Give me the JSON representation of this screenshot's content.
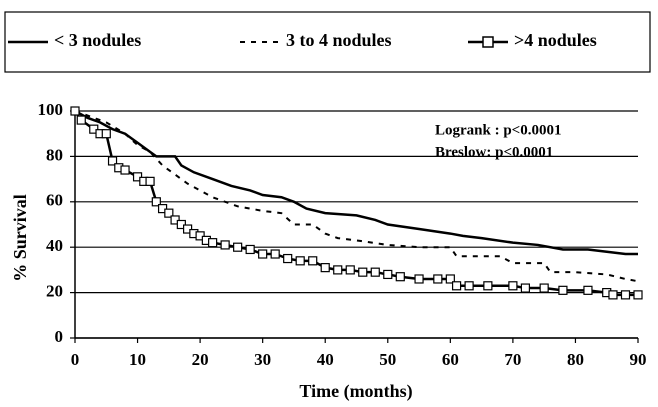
{
  "chart_data": {
    "type": "line",
    "x_label": "Time (months)",
    "y_label": "% Survival",
    "annotations": [
      "Logrank : p<0.0001",
      "Breslow: p<0.0001"
    ],
    "xlim": [
      0,
      90
    ],
    "xticks": [
      0,
      10,
      20,
      30,
      40,
      50,
      60,
      70,
      80,
      90
    ],
    "ylim": [
      0,
      100
    ],
    "yticks": [
      0,
      20,
      40,
      60,
      80,
      100
    ],
    "grid": true,
    "series": [
      {
        "name": "< 3 nodules",
        "color": "#000000",
        "style": "solid",
        "marker": "none",
        "x": [
          0,
          2,
          4,
          6,
          8,
          10,
          12,
          13,
          16,
          17,
          19,
          22,
          25,
          28,
          30,
          33,
          35,
          37,
          40,
          45,
          48,
          50,
          55,
          60,
          62,
          65,
          70,
          74,
          78,
          82,
          85,
          88,
          90
        ],
        "values": [
          100,
          97,
          95,
          92,
          90,
          86,
          82,
          80,
          80,
          76,
          73,
          70,
          67,
          65,
          63,
          62,
          60,
          57,
          55,
          54,
          52,
          50,
          48,
          46,
          45,
          44,
          42,
          41,
          39,
          39,
          38,
          37,
          37
        ]
      },
      {
        "name": "3 to 4 nodules",
        "color": "#000000",
        "style": "dashed",
        "marker": "none",
        "x": [
          0,
          5,
          8,
          10,
          12,
          14,
          16,
          18,
          20,
          22,
          24,
          26,
          30,
          33,
          35,
          38,
          40,
          42,
          45,
          50,
          55,
          60,
          61,
          65,
          68,
          70,
          75,
          76,
          80,
          85,
          88,
          90
        ],
        "values": [
          100,
          95,
          90,
          85,
          82,
          76,
          72,
          68,
          65,
          62,
          60,
          58,
          56,
          55,
          50,
          50,
          46,
          44,
          43,
          41,
          40,
          40,
          36,
          36,
          36,
          33,
          33,
          29,
          29,
          28,
          26,
          25
        ]
      },
      {
        "name": ">4 nodules",
        "color": "#000000",
        "style": "solid",
        "marker": "square",
        "x": [
          0,
          1,
          3,
          4,
          5,
          6,
          7,
          8,
          10,
          11,
          12,
          13,
          14,
          15,
          16,
          17,
          18,
          19,
          20,
          21,
          22,
          24,
          26,
          28,
          30,
          32,
          34,
          36,
          38,
          40,
          42,
          44,
          46,
          48,
          50,
          52,
          55,
          58,
          60,
          61,
          63,
          66,
          70,
          72,
          75,
          78,
          82,
          85,
          86,
          88,
          90
        ],
        "values": [
          100,
          96,
          92,
          90,
          90,
          78,
          75,
          74,
          71,
          69,
          69,
          60,
          57,
          55,
          52,
          50,
          48,
          46,
          45,
          43,
          42,
          41,
          40,
          39,
          37,
          37,
          35,
          34,
          34,
          31,
          30,
          30,
          29,
          29,
          28,
          27,
          26,
          26,
          26,
          23,
          23,
          23,
          23,
          22,
          22,
          21,
          21,
          20,
          19,
          19,
          19
        ]
      }
    ]
  }
}
